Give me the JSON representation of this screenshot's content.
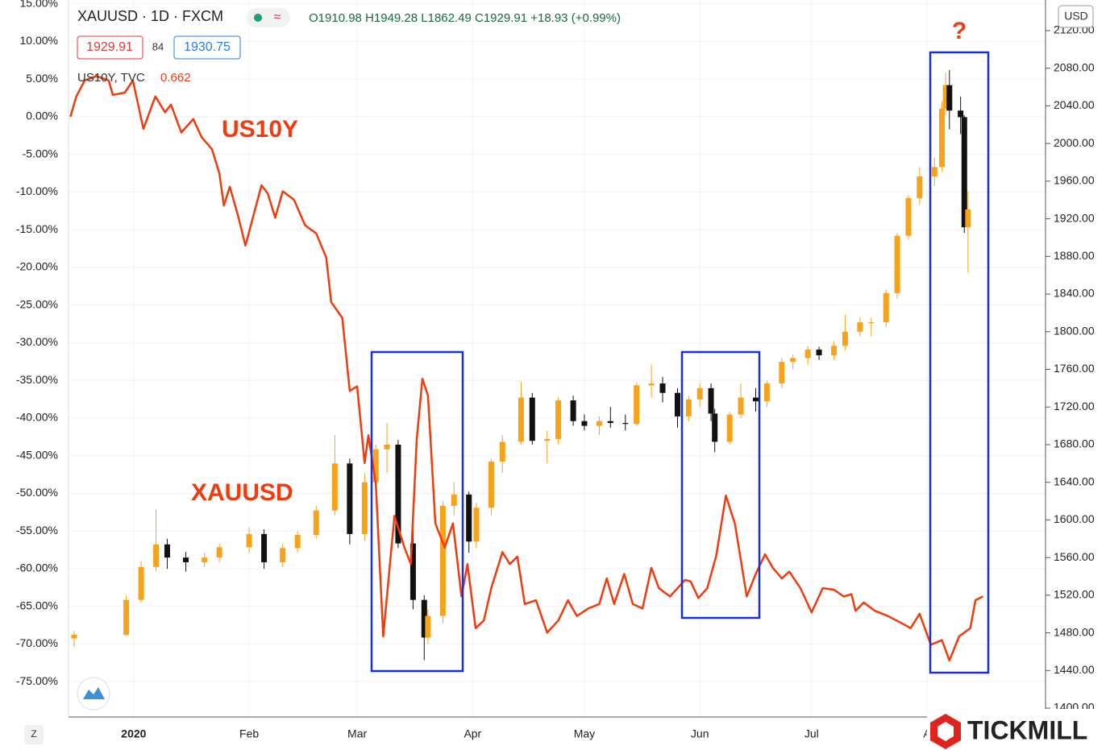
{
  "header": {
    "symbol": "XAUUSD · 1D · FXCM",
    "ohlc": "O1910.98  H1949.28  L1862.49  C1929.91  +18.93 (+0.99%)",
    "bid": "1929.91",
    "spread": "84",
    "ask": "1930.75",
    "compare": "US10Y, TVC",
    "compare_value": "0.662",
    "currency": "USD",
    "zoom": "Z",
    "brand": "TICKMILL"
  },
  "chart_data": {
    "type": "candlestick",
    "annotations": [
      "US10Y",
      "XAUUSD",
      "?"
    ],
    "xlim": [
      -16.5,
      245.8
    ],
    "xticks": [
      {
        "value": 1,
        "label": "2020"
      },
      {
        "value": 32,
        "label": "Feb"
      },
      {
        "value": 61,
        "label": "Mar"
      },
      {
        "value": 92,
        "label": "Apr"
      },
      {
        "value": 122,
        "label": "May"
      },
      {
        "value": 153,
        "label": "Jun"
      },
      {
        "value": 183,
        "label": "Jul"
      },
      {
        "value": 214,
        "label": "A"
      }
    ],
    "ylim": [
      -79.7,
      15.5
    ],
    "yticks": [
      {
        "value": 15,
        "label": "15.00%"
      },
      {
        "value": 10,
        "label": "10.00%"
      },
      {
        "value": 5,
        "label": "5.00%"
      },
      {
        "value": 0,
        "label": "0.00%"
      },
      {
        "value": -5,
        "label": "-5.00%"
      },
      {
        "value": -10,
        "label": "-10.00%"
      },
      {
        "value": -15,
        "label": "-15.00%"
      },
      {
        "value": -20,
        "label": "-20.00%"
      },
      {
        "value": -25,
        "label": "-25.00%"
      },
      {
        "value": -30,
        "label": "-30.00%"
      },
      {
        "value": -35,
        "label": "-35.00%"
      },
      {
        "value": -40,
        "label": "-40.00%"
      },
      {
        "value": -45,
        "label": "-45.00%"
      },
      {
        "value": -50,
        "label": "-50.00%"
      },
      {
        "value": -55,
        "label": "-55.00%"
      },
      {
        "value": -60,
        "label": "-60.00%"
      },
      {
        "value": -65,
        "label": "-65.00%"
      },
      {
        "value": -70,
        "label": "-70.00%"
      },
      {
        "value": -75,
        "label": "-75.00%"
      }
    ],
    "y2lim": [
      1390.6,
      2152.5
    ],
    "y2ticks": [
      {
        "value": 1400,
        "label": "1400.00"
      },
      {
        "value": 1440,
        "label": "1440.00"
      },
      {
        "value": 1480,
        "label": "1480.00"
      },
      {
        "value": 1520,
        "label": "1520.00"
      },
      {
        "value": 1560,
        "label": "1560.00"
      },
      {
        "value": 1600,
        "label": "1600.00"
      },
      {
        "value": 1640,
        "label": "1640.00"
      },
      {
        "value": 1680,
        "label": "1680.00"
      },
      {
        "value": 1720,
        "label": "1720.00"
      },
      {
        "value": 1760,
        "label": "1760.00"
      },
      {
        "value": 1800,
        "label": "1800.00"
      },
      {
        "value": 1840,
        "label": "1840.00"
      },
      {
        "value": 1880,
        "label": "1880.00"
      },
      {
        "value": 1920,
        "label": "1920.00"
      },
      {
        "value": 1960,
        "label": "1960.00"
      },
      {
        "value": 2000,
        "label": "2000.00"
      },
      {
        "value": 2040,
        "label": "2040.00"
      },
      {
        "value": 2080,
        "label": "2080.00"
      },
      {
        "value": 2120,
        "label": "2120.00"
      }
    ],
    "series": [
      {
        "name": "XAUUSD",
        "type": "candlestick",
        "axis": "y2",
        "up_color": "#f7a21b",
        "down_color": "#111111",
        "x": [
          -15,
          -1,
          3,
          7,
          10,
          15,
          20,
          24,
          32,
          36,
          41,
          45,
          50,
          55,
          59,
          63,
          66,
          69,
          72,
          76,
          79,
          80,
          84,
          87,
          91,
          93,
          97,
          100,
          105,
          108,
          112,
          115,
          119,
          122,
          126,
          129,
          133,
          136,
          140,
          143,
          147,
          150,
          153,
          156,
          157,
          161,
          164,
          168,
          171,
          175,
          178,
          182,
          185,
          189,
          192,
          196,
          199,
          203,
          206,
          209,
          212,
          216,
          218,
          219,
          220,
          223,
          224,
          225
        ],
        "open": [
          1474,
          1478,
          1515,
          1550,
          1574,
          1560,
          1555,
          1560,
          1571,
          1585,
          1555,
          1570,
          1584,
          1610,
          1660,
          1585,
          1640,
          1675,
          1680,
          1575,
          1515,
          1475,
          1498,
          1615,
          1627,
          1577,
          1613,
          1662,
          1683,
          1730,
          1684,
          1686,
          1727,
          1705,
          1700,
          1705,
          1703,
          1702,
          1743,
          1745,
          1735,
          1710,
          1728,
          1740,
          1713,
          1683,
          1712,
          1730,
          1726,
          1745,
          1768,
          1772,
          1781,
          1775,
          1785,
          1800,
          1810,
          1810,
          1841,
          1902,
          1942,
          1965,
          1975,
          2037,
          2062,
          2035,
          2028,
          1910.98
        ],
        "high": [
          1482,
          1520,
          1556,
          1611,
          1580,
          1566,
          1565,
          1575,
          1592,
          1590,
          1575,
          1588,
          1615,
          1690,
          1665,
          1650,
          1680,
          1703,
          1685,
          1590,
          1520,
          1505,
          1620,
          1640,
          1630,
          1618,
          1665,
          1690,
          1747,
          1735,
          1695,
          1730,
          1732,
          1712,
          1710,
          1720,
          1712,
          1746,
          1765,
          1752,
          1740,
          1732,
          1745,
          1745,
          1718,
          1715,
          1745,
          1740,
          1748,
          1772,
          1776,
          1785,
          1784,
          1790,
          1818,
          1815,
          1815,
          1845,
          1905,
          1945,
          1975,
          1985,
          2045,
          2075,
          2078,
          2050,
          2030,
          1949.28
        ],
        "low": [
          1465,
          1476,
          1512,
          1545,
          1548,
          1545,
          1550,
          1555,
          1565,
          1548,
          1550,
          1565,
          1580,
          1605,
          1574,
          1578,
          1635,
          1650,
          1570,
          1505,
          1451,
          1468,
          1490,
          1605,
          1565,
          1570,
          1605,
          1650,
          1680,
          1680,
          1660,
          1680,
          1700,
          1695,
          1690,
          1698,
          1695,
          1700,
          1730,
          1725,
          1698,
          1705,
          1720,
          1705,
          1672,
          1680,
          1708,
          1715,
          1720,
          1740,
          1760,
          1765,
          1770,
          1770,
          1780,
          1795,
          1795,
          1805,
          1835,
          1898,
          1935,
          1955,
          1970,
          2030,
          2015,
          2010,
          1905,
          1862.49
        ],
        "close": [
          1478,
          1515,
          1550,
          1574,
          1560,
          1555,
          1560,
          1571,
          1585,
          1555,
          1570,
          1584,
          1610,
          1660,
          1585,
          1640,
          1675,
          1680,
          1575,
          1515,
          1475,
          1498,
          1615,
          1627,
          1577,
          1613,
          1662,
          1683,
          1730,
          1684,
          1686,
          1727,
          1705,
          1700,
          1705,
          1703,
          1702,
          1743,
          1745,
          1735,
          1710,
          1728,
          1740,
          1713,
          1683,
          1712,
          1730,
          1726,
          1745,
          1768,
          1772,
          1781,
          1775,
          1785,
          1800,
          1810,
          1810,
          1841,
          1902,
          1942,
          1965,
          1975,
          2037,
          2062,
          2035,
          2028,
          1911,
          1929.91
        ]
      },
      {
        "name": "US10Y",
        "type": "line",
        "color": "#f23a0c",
        "x": [
          -16,
          -14.4,
          -12.2,
          -9,
          -5.7,
          -4.6,
          -1.4,
          0.8,
          3.6,
          6.8,
          9.4,
          11,
          13.8,
          17,
          19.2,
          22,
          24,
          25.2,
          26.8,
          29,
          31,
          33,
          35.3,
          37,
          39,
          41,
          44,
          47,
          50,
          52.7,
          54,
          57,
          59,
          61,
          63,
          64,
          66,
          68,
          71,
          73.7,
          75.4,
          77,
          78.5,
          80,
          82,
          84.5,
          86.7,
          89,
          90.6,
          92.8,
          95,
          97,
          100,
          102,
          104,
          106,
          109,
          112,
          115,
          117.6,
          120,
          123,
          126,
          128,
          130,
          132.7,
          135,
          137.6,
          140,
          142,
          145,
          149,
          150.5,
          152.6,
          155,
          157.4,
          160,
          162.4,
          165.6,
          168,
          170.5,
          172.6,
          175,
          177,
          180,
          183,
          186,
          189,
          191.6,
          193.7,
          194.8,
          197,
          200,
          203.5,
          206.6,
          209.6,
          212,
          215,
          218,
          220,
          222.6,
          225.6,
          227,
          229
        ],
        "values": [
          0.0,
          2.7,
          4.8,
          5.4,
          4.8,
          2.9,
          3.2,
          4.8,
          -1.6,
          2.7,
          0.6,
          1.6,
          -2.1,
          -0.3,
          -2.7,
          -4.3,
          -7.5,
          -11.8,
          -9.3,
          -13.1,
          -17.1,
          -13.4,
          -9.1,
          -10.2,
          -13.4,
          -9.9,
          -11.0,
          -14.4,
          -15.5,
          -18.7,
          -24.6,
          -26.7,
          -36.4,
          -35.8,
          -46.0,
          -42.3,
          -48.7,
          -69.0,
          -53.0,
          -57.2,
          -59.4,
          -42.8,
          -34.8,
          -37.0,
          -54.0,
          -57.2,
          -54.0,
          -63.7,
          -59.4,
          -67.9,
          -66.9,
          -62.6,
          -57.8,
          -59.4,
          -58.4,
          -64.7,
          -64.2,
          -68.5,
          -66.9,
          -64.2,
          -66.3,
          -65.3,
          -64.7,
          -61.3,
          -64.7,
          -60.7,
          -64.7,
          -65.3,
          -59.9,
          -62.6,
          -63.7,
          -61.5,
          -61.7,
          -63.9,
          -62.6,
          -58.3,
          -50.3,
          -54.0,
          -63.7,
          -60.7,
          -58.1,
          -59.9,
          -61.3,
          -60.4,
          -62.6,
          -65.8,
          -62.6,
          -62.8,
          -63.7,
          -63.4,
          -65.6,
          -64.5,
          -65.6,
          -66.3,
          -67.1,
          -67.9,
          -66.0,
          -70.1,
          -69.5,
          -72.2,
          -69.0,
          -67.9,
          -64.2,
          -63.7
        ]
      }
    ]
  }
}
